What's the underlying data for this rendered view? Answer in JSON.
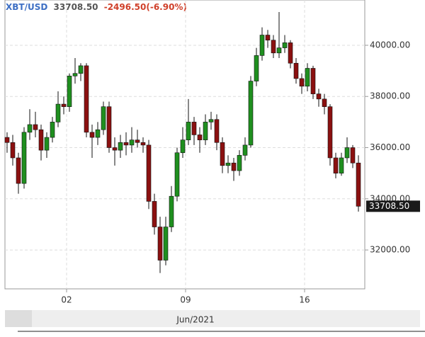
{
  "chart_data": {
    "type": "candlestick",
    "symbol": "XBT/USD",
    "last_price": {
      "value": 33708.5,
      "label": "33708.50"
    },
    "change": "-2496.50(-6.90%)",
    "x_axis_label": "Jun/2021",
    "categories": [
      null,
      null,
      null,
      null,
      null,
      null,
      null,
      null,
      null,
      null,
      null,
      "02",
      null,
      null,
      null,
      null,
      null,
      null,
      null,
      null,
      null,
      null,
      null,
      null,
      null,
      null,
      null,
      null,
      null,
      null,
      null,
      null,
      "09",
      null,
      null,
      null,
      null,
      null,
      null,
      null,
      null,
      null,
      null,
      null,
      null,
      null,
      null,
      null,
      null,
      null,
      null,
      null,
      null,
      "16",
      null,
      null,
      null,
      null,
      null,
      null,
      null,
      null,
      null
    ],
    "open": [
      36400,
      36200,
      35600,
      34600,
      36600,
      36900,
      36700,
      35900,
      36400,
      37000,
      37700,
      37600,
      38800,
      38900,
      39200,
      36600,
      36400,
      36700,
      37600,
      36000,
      35900,
      36200,
      36100,
      36300,
      36200,
      36100,
      33900,
      32900,
      31600,
      32900,
      34100,
      35800,
      36300,
      37000,
      36500,
      36300,
      37000,
      37100,
      36200,
      35300,
      35400,
      35100,
      35700,
      36100,
      38600,
      39600,
      40400,
      40200,
      39700,
      39900,
      40100,
      39300,
      38700,
      38400,
      39100,
      38100,
      37900,
      37600,
      35600,
      35000,
      35600,
      36000,
      35400
    ],
    "high": [
      36600,
      36500,
      35800,
      36800,
      37500,
      37400,
      36900,
      36600,
      37200,
      38200,
      38000,
      38900,
      39500,
      39300,
      39300,
      36900,
      37000,
      37800,
      37800,
      36400,
      36500,
      36600,
      36800,
      36700,
      36400,
      36300,
      34200,
      33300,
      33300,
      34500,
      36000,
      36800,
      37900,
      37200,
      36800,
      37300,
      37400,
      37300,
      36400,
      35700,
      35600,
      35900,
      36400,
      38800,
      39900,
      40700,
      40600,
      40400,
      41300,
      40400,
      40200,
      39500,
      38900,
      39300,
      39200,
      38300,
      38100,
      37700,
      35800,
      35800,
      36400,
      36100,
      35700
    ],
    "low": [
      35800,
      35300,
      34200,
      34400,
      36300,
      36400,
      35500,
      35600,
      36200,
      36800,
      37300,
      37400,
      38500,
      38600,
      36400,
      35600,
      36100,
      36500,
      35800,
      35300,
      35600,
      35700,
      35800,
      36000,
      35800,
      33600,
      32600,
      31100,
      31400,
      32700,
      33900,
      35600,
      36100,
      36100,
      35800,
      36100,
      36700,
      35900,
      35000,
      35000,
      34700,
      34900,
      35500,
      36000,
      38400,
      39400,
      39900,
      39500,
      39500,
      39700,
      39100,
      38500,
      38100,
      38200,
      37900,
      37600,
      37300,
      35300,
      34800,
      34900,
      35400,
      35200,
      33500
    ],
    "close": [
      36200,
      35600,
      34600,
      36600,
      36900,
      36700,
      35900,
      36400,
      37000,
      37700,
      37600,
      38800,
      38900,
      39200,
      36600,
      36400,
      36700,
      37600,
      36000,
      35900,
      36200,
      36100,
      36300,
      36200,
      36100,
      33900,
      32900,
      31600,
      32900,
      34100,
      35800,
      36300,
      37000,
      36500,
      36300,
      37000,
      37100,
      36200,
      35300,
      35400,
      35100,
      35700,
      36100,
      38600,
      39600,
      40400,
      40200,
      39700,
      39900,
      40100,
      39300,
      38700,
      38400,
      39100,
      38100,
      37900,
      37600,
      35600,
      35000,
      35600,
      36000,
      35400,
      33708.5
    ],
    "up_color": "#1f8f1f",
    "down_color": "#8b1010",
    "ylim": [
      30480,
      41770
    ],
    "yticks": [
      {
        "value": 32000,
        "label": "32000.00"
      },
      {
        "value": 34000,
        "label": "34000.00"
      },
      {
        "value": 36000,
        "label": "36000.00"
      },
      {
        "value": 38000,
        "label": "38000.00"
      },
      {
        "value": 40000,
        "label": "40000.00"
      }
    ],
    "grid": true
  }
}
